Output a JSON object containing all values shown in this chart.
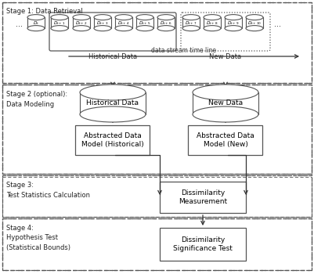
{
  "stage1_label": "Stage 1: Data Retrieval",
  "stage2_label": "Stage 2 (optional):\nData Modeling",
  "stage3_label": "Stage 3:\nTest Statistics Calculation",
  "stage4_label": "Stage 4:\nHypothesis Test\n(Statistical Bounds)",
  "timeline_label": "data stream time line",
  "hist_data_label": "Historical Data",
  "new_data_label": "New Data",
  "box_abstracted_hist": "Abstracted Data\nModel (Historical)",
  "box_abstracted_new": "Abstracted Data\nModel (New)",
  "box_dissimilarity": "Dissimilarity\nMeasurement",
  "box_significance": "Dissimilarity\nSignificance Test",
  "db_subs": [
    "t",
    "t+1",
    "t+2",
    "t+3",
    "t+4",
    "t+5",
    "t+6",
    "t+7",
    "t+8",
    "t+9",
    "t+10"
  ],
  "bg_color": "#ffffff",
  "edge_color": "#555555",
  "arrow_color": "#333333",
  "text_color": "#222222"
}
